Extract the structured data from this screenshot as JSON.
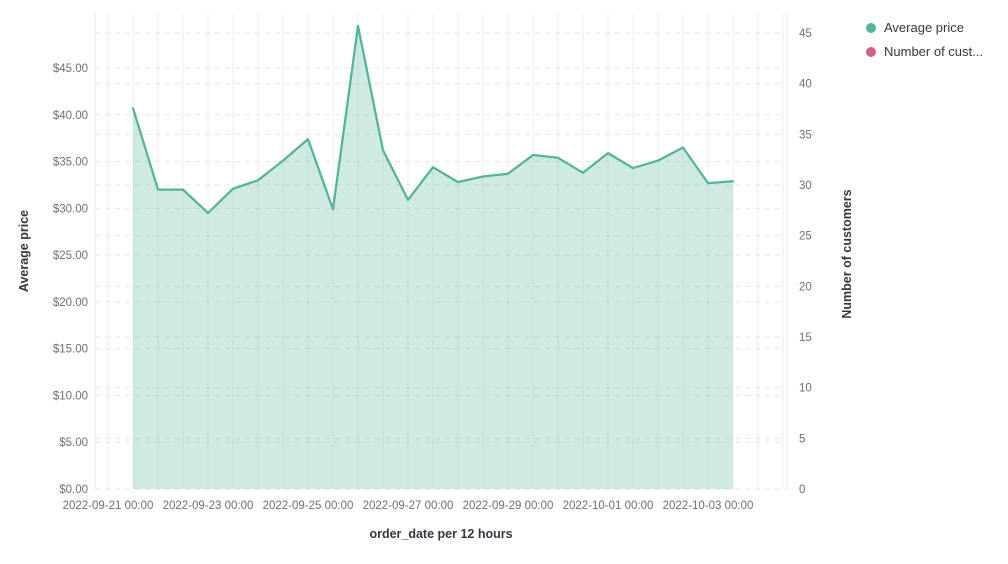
{
  "chart_data": {
    "type": "area",
    "title": "",
    "x_axis": {
      "label": "order_date per 12 hours",
      "tick_labels": [
        "2022-09-21 00:00",
        "2022-09-23 00:00",
        "2022-09-25 00:00",
        "2022-09-27 00:00",
        "2022-09-29 00:00",
        "2022-10-01 00:00",
        "2022-10-03 00:00"
      ],
      "tick_interval": "2 days",
      "grid_interval_hours": 12
    },
    "y_left": {
      "label": "Average price",
      "tick_labels": [
        "$0.00",
        "$5.00",
        "$10.00",
        "$15.00",
        "$20.00",
        "$25.00",
        "$30.00",
        "$35.00",
        "$40.00",
        "$45.00"
      ],
      "tick_values": [
        0,
        5,
        10,
        15,
        20,
        25,
        30,
        35,
        40,
        45
      ],
      "range": [
        0,
        45
      ],
      "grid": "dashed"
    },
    "y_right": {
      "label": "Number of customers",
      "tick_labels": [
        "0",
        "5",
        "10",
        "15",
        "20",
        "25",
        "30",
        "35",
        "40",
        "45"
      ],
      "tick_values": [
        0,
        5,
        10,
        15,
        20,
        25,
        30,
        35,
        40,
        45
      ],
      "range": [
        0,
        45
      ],
      "grid": "dashed"
    },
    "x": [
      "2022-09-21 12:00",
      "2022-09-22 00:00",
      "2022-09-22 12:00",
      "2022-09-23 00:00",
      "2022-09-23 12:00",
      "2022-09-24 00:00",
      "2022-09-24 12:00",
      "2022-09-25 00:00",
      "2022-09-25 12:00",
      "2022-09-26 00:00",
      "2022-09-26 12:00",
      "2022-09-27 00:00",
      "2022-09-27 12:00",
      "2022-09-28 00:00",
      "2022-09-28 12:00",
      "2022-09-29 00:00",
      "2022-09-29 12:00",
      "2022-09-30 00:00",
      "2022-09-30 12:00",
      "2022-10-01 00:00",
      "2022-10-01 12:00",
      "2022-10-02 00:00",
      "2022-10-02 12:00",
      "2022-10-03 00:00",
      "2022-10-03 12:00"
    ],
    "series": [
      {
        "name": "Average price",
        "axis": "left",
        "color": "#54b399",
        "fill_color": "rgba(84,179,153,0.28)",
        "values": [
          40.7,
          32.0,
          32.0,
          29.5,
          32.1,
          33.0,
          35.1,
          37.4,
          29.9,
          49.5,
          36.2,
          30.9,
          34.4,
          32.8,
          33.4,
          33.7,
          35.7,
          35.4,
          33.8,
          35.9,
          34.3,
          35.1,
          36.5,
          32.7,
          32.9
        ]
      },
      {
        "name": "Number of customers",
        "axis": "right",
        "color": "#d36086",
        "values": []
      }
    ],
    "legend_position": "top-right",
    "grid": true
  },
  "legend": {
    "items": [
      {
        "label": "Average price",
        "color": "#54b399"
      },
      {
        "label": "Number of cust...",
        "color": "#d36086"
      }
    ]
  },
  "colors": {
    "tick_text": "#69707d",
    "title_text": "#343741",
    "grid_dashed": "#e2e5ea",
    "grid_solid": "#eceef2",
    "plot_border": "#e6e9ed"
  }
}
